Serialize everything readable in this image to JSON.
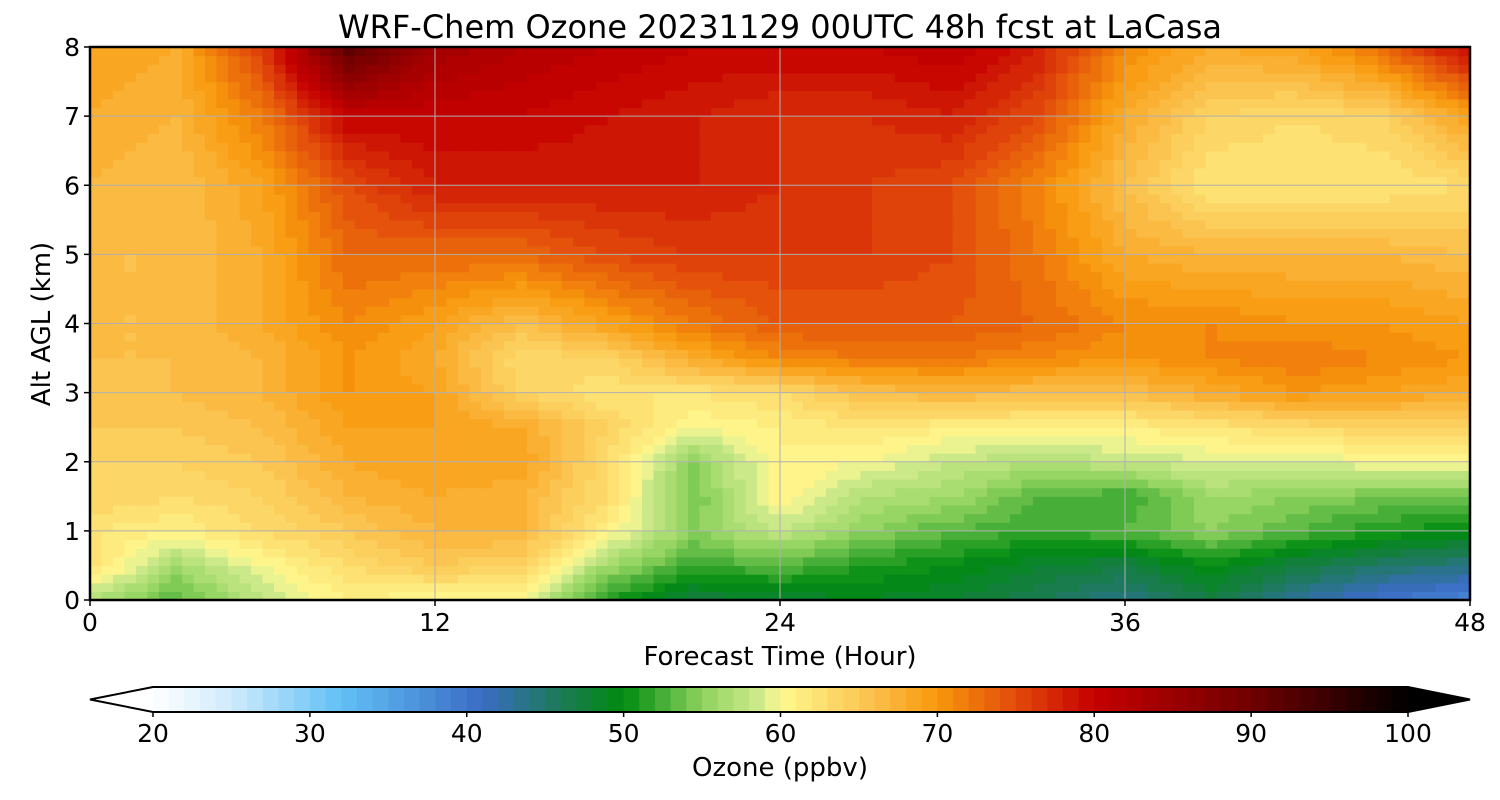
{
  "chart_data": {
    "type": "heatmap",
    "title": "WRF-Chem Ozone  20231129 00UTC 48h fcst at LaCasa",
    "xlabel": "Forecast Time (Hour)",
    "ylabel": "Alt AGL (km)",
    "xlim": [
      0,
      48
    ],
    "ylim": [
      0,
      8
    ],
    "xticks": [
      0,
      12,
      24,
      36,
      48
    ],
    "yticks": [
      0,
      1,
      2,
      3,
      4,
      5,
      6,
      7,
      8
    ],
    "grid": true,
    "x": [
      0,
      3,
      6,
      9,
      12,
      15,
      18,
      21,
      24,
      27,
      30,
      33,
      36,
      39,
      42,
      45,
      48
    ],
    "y": [
      0,
      0.5,
      1,
      1.5,
      2,
      2.5,
      3,
      3.5,
      4,
      5,
      6,
      7,
      8
    ],
    "z": [
      [
        57,
        53,
        58,
        61,
        60,
        60,
        51,
        47,
        48,
        49,
        48,
        46,
        44,
        47,
        43,
        40,
        38
      ],
      [
        63,
        56,
        60,
        63,
        65,
        64,
        56,
        52,
        53,
        51,
        50,
        48,
        47,
        50,
        47,
        45,
        44
      ],
      [
        62,
        61,
        63,
        65,
        67,
        67,
        61,
        55,
        58,
        55,
        53,
        52,
        53,
        55,
        53,
        51,
        50
      ],
      [
        64,
        63,
        64,
        67,
        68,
        67,
        63,
        54,
        61,
        57,
        56,
        53,
        52,
        56,
        55,
        54,
        54
      ],
      [
        64,
        64,
        65,
        68,
        69,
        69,
        63,
        55,
        61,
        60,
        58,
        57,
        58,
        59,
        59,
        60,
        60
      ],
      [
        65,
        65,
        66,
        69,
        69,
        68,
        64,
        60,
        61,
        62,
        61,
        61,
        61,
        62,
        63,
        64,
        64
      ],
      [
        65,
        66,
        67,
        70,
        69,
        64,
        62,
        62,
        63,
        66,
        67,
        66,
        66,
        68,
        70,
        69,
        68
      ],
      [
        66,
        66,
        67,
        70,
        68,
        63,
        64,
        68,
        71,
        72,
        72,
        71,
        70,
        71,
        72,
        71,
        70
      ],
      [
        66,
        66,
        68,
        71,
        69,
        66,
        69,
        72,
        74,
        74,
        74,
        73,
        71,
        71,
        70,
        70,
        69
      ],
      [
        66,
        66,
        68,
        73,
        73,
        73,
        75,
        76,
        76,
        76,
        75,
        72,
        68,
        67,
        67,
        67,
        66
      ],
      [
        67,
        66,
        69,
        75,
        78,
        78,
        78,
        78,
        77,
        76,
        75,
        71,
        66,
        62,
        62,
        62,
        63
      ],
      [
        68,
        67,
        72,
        80,
        80,
        80,
        79,
        78,
        77,
        77,
        78,
        75,
        68,
        64,
        63,
        64,
        69
      ],
      [
        69,
        68,
        76,
        92,
        84,
        82,
        81,
        80,
        80,
        80,
        81,
        78,
        71,
        68,
        69,
        73,
        80
      ]
    ],
    "colorbar": {
      "label": "Ozone  (ppbv)",
      "min": 20,
      "max": 100,
      "step": 1,
      "extend": "both",
      "ticks": [
        20,
        30,
        40,
        50,
        60,
        70,
        80,
        90,
        100
      ],
      "colors": [
        {
          "v": 20,
          "c": "#ffffff"
        },
        {
          "v": 25,
          "c": "#cfeafb"
        },
        {
          "v": 32,
          "c": "#62c0f6"
        },
        {
          "v": 41,
          "c": "#3a6cc4"
        },
        {
          "v": 46,
          "c": "#1c7a55"
        },
        {
          "v": 50,
          "c": "#008b10"
        },
        {
          "v": 55,
          "c": "#8ed25e"
        },
        {
          "v": 59,
          "c": "#d5ec90"
        },
        {
          "v": 60,
          "c": "#fef990"
        },
        {
          "v": 66,
          "c": "#fbbf4a"
        },
        {
          "v": 70,
          "c": "#f7980c"
        },
        {
          "v": 76,
          "c": "#dd3b0a"
        },
        {
          "v": 80,
          "c": "#c50000"
        },
        {
          "v": 90,
          "c": "#700000"
        },
        {
          "v": 100,
          "c": "#000000"
        }
      ]
    }
  }
}
